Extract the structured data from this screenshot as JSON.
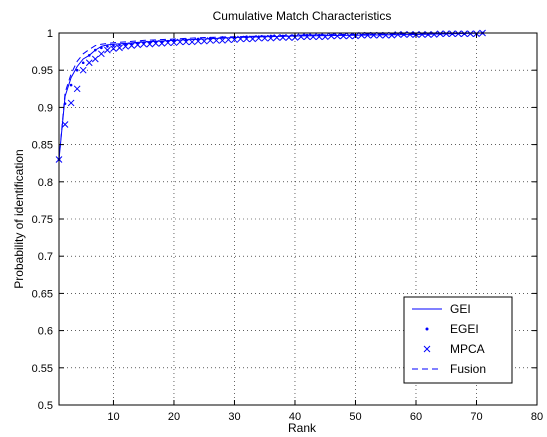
{
  "chart_data": {
    "type": "line",
    "title": "Cumulative Match Characteristics",
    "xlabel": "Rank",
    "ylabel": "Probability of identification",
    "xlim": [
      1,
      80
    ],
    "ylim": [
      0.5,
      1.0
    ],
    "xticks": [
      10,
      20,
      30,
      40,
      50,
      60,
      70,
      80
    ],
    "xtick_labels": [
      "10",
      "20",
      "30",
      "40",
      "50",
      "60",
      "70",
      "80"
    ],
    "yticks": [
      0.5,
      0.55,
      0.6,
      0.65,
      0.7,
      0.75,
      0.8,
      0.85,
      0.9,
      0.95,
      1.0
    ],
    "ytick_labels": [
      "0.5",
      "0.55",
      "0.6",
      "0.65",
      "0.7",
      "0.75",
      "0.8",
      "0.85",
      "0.9",
      "0.95",
      "1"
    ],
    "grid": true,
    "legend_position": "bottom-right",
    "line_color": "#0000ff",
    "series": [
      {
        "name": "GEI",
        "style": "solid",
        "x": [
          1,
          2,
          3,
          4,
          5,
          6,
          7,
          8,
          9,
          10,
          12,
          15,
          20,
          25,
          30,
          35,
          40,
          50,
          60,
          71
        ],
        "y": [
          0.83,
          0.915,
          0.94,
          0.955,
          0.965,
          0.97,
          0.977,
          0.982,
          0.984,
          0.985,
          0.986,
          0.988,
          0.99,
          0.992,
          0.994,
          0.995,
          0.996,
          0.997,
          0.998,
          1.0
        ]
      },
      {
        "name": "EGEI",
        "style": "dots",
        "x": [
          1,
          2,
          3,
          4,
          5,
          6,
          7,
          8,
          9,
          10,
          11,
          12,
          13,
          14,
          15,
          16,
          17,
          18,
          19,
          20,
          22,
          24,
          26,
          28,
          30,
          32,
          34,
          36,
          38,
          40,
          42,
          44,
          46,
          48,
          50,
          52,
          54,
          56,
          58,
          60,
          62,
          64,
          66,
          68,
          70,
          71
        ],
        "y": [
          0.83,
          0.905,
          0.93,
          0.95,
          0.96,
          0.97,
          0.977,
          0.98,
          0.982,
          0.983,
          0.984,
          0.985,
          0.985,
          0.986,
          0.987,
          0.987,
          0.988,
          0.988,
          0.989,
          0.99,
          0.991,
          0.992,
          0.993,
          0.994,
          0.994,
          0.995,
          0.995,
          0.996,
          0.996,
          0.996,
          0.997,
          0.997,
          0.997,
          0.997,
          0.997,
          0.998,
          0.998,
          0.998,
          0.998,
          0.998,
          0.998,
          0.999,
          0.999,
          0.999,
          0.999,
          1.0
        ]
      },
      {
        "name": "MPCA",
        "style": "x-markers",
        "x": [
          1,
          2,
          3,
          4,
          5,
          6,
          7,
          8,
          9,
          10,
          11,
          12,
          13,
          14,
          15,
          16,
          17,
          18,
          19,
          20,
          21,
          22,
          23,
          24,
          25,
          26,
          27,
          28,
          29,
          30,
          31,
          32,
          33,
          34,
          35,
          36,
          37,
          38,
          39,
          40,
          41,
          42,
          43,
          44,
          45,
          46,
          47,
          48,
          49,
          50,
          51,
          52,
          53,
          54,
          55,
          56,
          57,
          58,
          59,
          60,
          61,
          62,
          63,
          64,
          65,
          66,
          67,
          68,
          69,
          70,
          71
        ],
        "y": [
          0.83,
          0.877,
          0.906,
          0.925,
          0.95,
          0.96,
          0.965,
          0.972,
          0.977,
          0.979,
          0.98,
          0.982,
          0.983,
          0.984,
          0.985,
          0.985,
          0.986,
          0.986,
          0.987,
          0.987,
          0.988,
          0.988,
          0.988,
          0.989,
          0.989,
          0.99,
          0.99,
          0.99,
          0.991,
          0.991,
          0.992,
          0.992,
          0.992,
          0.993,
          0.993,
          0.993,
          0.994,
          0.994,
          0.994,
          0.994,
          0.995,
          0.995,
          0.995,
          0.995,
          0.995,
          0.996,
          0.996,
          0.996,
          0.996,
          0.996,
          0.997,
          0.997,
          0.997,
          0.997,
          0.997,
          0.997,
          0.998,
          0.998,
          0.998,
          0.998,
          0.998,
          0.998,
          0.998,
          0.999,
          0.999,
          0.999,
          0.999,
          0.999,
          0.999,
          0.999,
          1.0
        ]
      },
      {
        "name": "Fusion",
        "style": "dashed",
        "x": [
          1,
          2,
          3,
          4,
          5,
          6,
          7,
          8,
          9,
          10,
          12,
          15,
          20,
          25,
          30,
          35,
          40,
          50,
          60,
          71
        ],
        "y": [
          0.83,
          0.92,
          0.945,
          0.962,
          0.972,
          0.978,
          0.983,
          0.985,
          0.986,
          0.987,
          0.988,
          0.99,
          0.992,
          0.994,
          0.995,
          0.996,
          0.997,
          0.998,
          0.999,
          1.0
        ]
      }
    ]
  }
}
